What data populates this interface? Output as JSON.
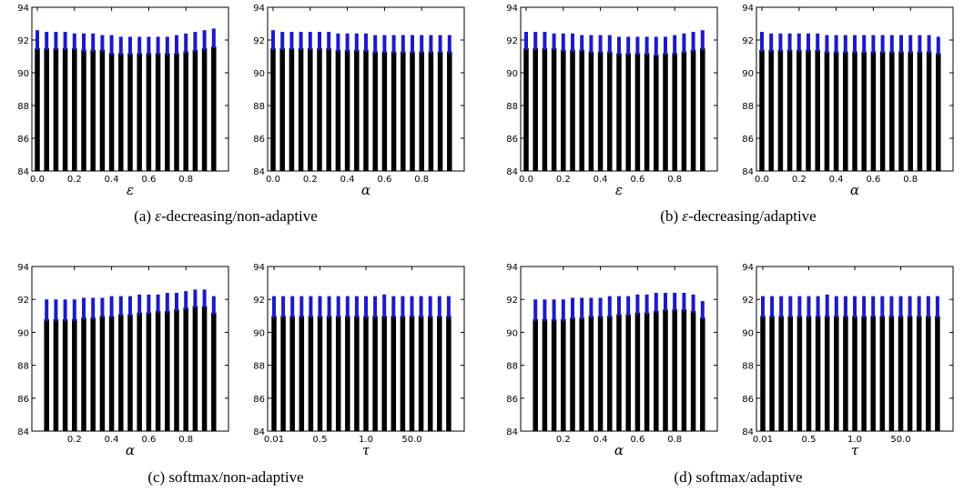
{
  "chart_data": [
    {
      "type": "bar",
      "subplot": "a-left",
      "xlabel": "ε",
      "xticks": [
        "0.0",
        "0.2",
        "0.4",
        "0.6",
        "0.8"
      ],
      "yticks": [
        "84",
        "86",
        "88",
        "90",
        "92",
        "94"
      ],
      "ylim": [
        84,
        94
      ],
      "x": [
        0.0,
        0.05,
        0.1,
        0.15,
        0.2,
        0.25,
        0.3,
        0.35,
        0.4,
        0.45,
        0.5,
        0.55,
        0.6,
        0.65,
        0.7,
        0.75,
        0.8,
        0.85,
        0.9,
        0.95
      ],
      "series": [
        {
          "values": [
            91.5,
            91.5,
            91.5,
            91.5,
            91.5,
            91.4,
            91.4,
            91.4,
            91.2,
            91.2,
            91.2,
            91.2,
            91.2,
            91.2,
            91.2,
            91.2,
            91.3,
            91.4,
            91.5,
            91.6
          ],
          "upper": [
            92.6,
            92.5,
            92.5,
            92.5,
            92.4,
            92.4,
            92.4,
            92.3,
            92.3,
            92.2,
            92.2,
            92.2,
            92.2,
            92.2,
            92.2,
            92.3,
            92.4,
            92.5,
            92.6,
            92.7
          ]
        }
      ]
    },
    {
      "type": "bar",
      "subplot": "a-right",
      "xlabel": "α",
      "xticks": [
        "0.0",
        "0.2",
        "0.4",
        "0.6",
        "0.8"
      ],
      "yticks": [
        "84",
        "86",
        "88",
        "90",
        "92",
        "94"
      ],
      "ylim": [
        84,
        94
      ],
      "x": [
        0.0,
        0.05,
        0.1,
        0.15,
        0.2,
        0.25,
        0.3,
        0.35,
        0.4,
        0.45,
        0.5,
        0.55,
        0.6,
        0.65,
        0.7,
        0.75,
        0.8,
        0.85,
        0.9,
        0.95
      ],
      "series": [
        {
          "values": [
            91.5,
            91.5,
            91.5,
            91.5,
            91.5,
            91.5,
            91.5,
            91.4,
            91.4,
            91.4,
            91.4,
            91.3,
            91.3,
            91.3,
            91.3,
            91.3,
            91.3,
            91.3,
            91.3,
            91.3
          ],
          "upper": [
            92.6,
            92.5,
            92.5,
            92.5,
            92.5,
            92.5,
            92.5,
            92.4,
            92.4,
            92.4,
            92.4,
            92.3,
            92.3,
            92.3,
            92.3,
            92.3,
            92.3,
            92.3,
            92.3,
            92.3
          ]
        }
      ]
    },
    {
      "type": "bar",
      "subplot": "b-left",
      "xlabel": "ε",
      "xticks": [
        "0.0",
        "0.2",
        "0.4",
        "0.6",
        "0.8"
      ],
      "yticks": [
        "84",
        "86",
        "88",
        "90",
        "92",
        "94"
      ],
      "ylim": [
        84,
        94
      ],
      "x": [
        0.0,
        0.05,
        0.1,
        0.15,
        0.2,
        0.25,
        0.3,
        0.35,
        0.4,
        0.45,
        0.5,
        0.55,
        0.6,
        0.65,
        0.7,
        0.75,
        0.8,
        0.85,
        0.9,
        0.95
      ],
      "series": [
        {
          "values": [
            91.5,
            91.5,
            91.5,
            91.5,
            91.4,
            91.4,
            91.4,
            91.3,
            91.3,
            91.3,
            91.2,
            91.2,
            91.2,
            91.2,
            91.1,
            91.2,
            91.2,
            91.3,
            91.4,
            91.5
          ],
          "upper": [
            92.5,
            92.5,
            92.5,
            92.4,
            92.4,
            92.4,
            92.3,
            92.3,
            92.3,
            92.3,
            92.2,
            92.2,
            92.2,
            92.2,
            92.2,
            92.2,
            92.3,
            92.4,
            92.5,
            92.6
          ]
        }
      ]
    },
    {
      "type": "bar",
      "subplot": "b-right",
      "xlabel": "α",
      "xticks": [
        "0.0",
        "0.2",
        "0.4",
        "0.6",
        "0.8"
      ],
      "yticks": [
        "84",
        "86",
        "88",
        "90",
        "92",
        "94"
      ],
      "ylim": [
        84,
        94
      ],
      "x": [
        0.0,
        0.05,
        0.1,
        0.15,
        0.2,
        0.25,
        0.3,
        0.35,
        0.4,
        0.45,
        0.5,
        0.55,
        0.6,
        0.65,
        0.7,
        0.75,
        0.8,
        0.85,
        0.9,
        0.95
      ],
      "series": [
        {
          "values": [
            91.4,
            91.4,
            91.4,
            91.4,
            91.4,
            91.4,
            91.4,
            91.3,
            91.3,
            91.3,
            91.3,
            91.3,
            91.3,
            91.3,
            91.3,
            91.3,
            91.3,
            91.3,
            91.3,
            91.2
          ],
          "upper": [
            92.5,
            92.4,
            92.4,
            92.4,
            92.4,
            92.4,
            92.4,
            92.3,
            92.3,
            92.3,
            92.3,
            92.3,
            92.3,
            92.3,
            92.3,
            92.3,
            92.3,
            92.3,
            92.3,
            92.2
          ]
        }
      ]
    },
    {
      "type": "bar",
      "subplot": "c-left",
      "xlabel": "α",
      "xticks": [
        "0.2",
        "0.4",
        "0.6",
        "0.8"
      ],
      "yticks": [
        "84",
        "86",
        "88",
        "90",
        "92",
        "94"
      ],
      "ylim": [
        84,
        94
      ],
      "x": [
        0.05,
        0.1,
        0.15,
        0.2,
        0.25,
        0.3,
        0.35,
        0.4,
        0.45,
        0.5,
        0.55,
        0.6,
        0.65,
        0.7,
        0.75,
        0.8,
        0.85,
        0.9,
        0.95
      ],
      "series": [
        {
          "values": [
            90.8,
            90.8,
            90.8,
            90.8,
            90.9,
            90.9,
            91.0,
            91.0,
            91.1,
            91.1,
            91.2,
            91.2,
            91.3,
            91.3,
            91.4,
            91.5,
            91.6,
            91.6,
            91.2
          ],
          "upper": [
            92.0,
            92.0,
            92.0,
            92.0,
            92.1,
            92.1,
            92.1,
            92.2,
            92.2,
            92.2,
            92.3,
            92.3,
            92.3,
            92.4,
            92.4,
            92.5,
            92.6,
            92.6,
            92.2
          ]
        }
      ]
    },
    {
      "type": "bar",
      "subplot": "c-right",
      "xlabel": "τ",
      "xticks": [
        "0.01",
        "0.5",
        "1.0",
        "50.0"
      ],
      "yticks": [
        "84",
        "86",
        "88",
        "90",
        "92",
        "94"
      ],
      "ylim": [
        84,
        94
      ],
      "x": [
        "0.01",
        "",
        "",
        "",
        "",
        "0.5",
        "",
        "",
        "",
        "",
        "1.0",
        "",
        "",
        "",
        "",
        "50.0",
        "",
        "",
        "",
        ""
      ],
      "series": [
        {
          "values": [
            91.0,
            91.0,
            91.0,
            91.0,
            91.0,
            91.0,
            91.0,
            91.0,
            91.0,
            91.0,
            91.0,
            91.0,
            91.0,
            91.0,
            91.0,
            91.0,
            91.0,
            91.0,
            91.0,
            91.0
          ],
          "upper": [
            92.2,
            92.2,
            92.2,
            92.2,
            92.2,
            92.2,
            92.2,
            92.2,
            92.2,
            92.2,
            92.2,
            92.2,
            92.3,
            92.2,
            92.2,
            92.2,
            92.2,
            92.2,
            92.2,
            92.2
          ]
        }
      ]
    },
    {
      "type": "bar",
      "subplot": "d-left",
      "xlabel": "α",
      "xticks": [
        "0.2",
        "0.4",
        "0.6",
        "0.8"
      ],
      "yticks": [
        "84",
        "86",
        "88",
        "90",
        "92",
        "94"
      ],
      "ylim": [
        84,
        94
      ],
      "x": [
        0.05,
        0.1,
        0.15,
        0.2,
        0.25,
        0.3,
        0.35,
        0.4,
        0.45,
        0.5,
        0.55,
        0.6,
        0.65,
        0.7,
        0.75,
        0.8,
        0.85,
        0.9,
        0.95
      ],
      "series": [
        {
          "values": [
            90.8,
            90.8,
            90.8,
            90.8,
            90.9,
            90.9,
            91.0,
            91.0,
            91.0,
            91.1,
            91.1,
            91.2,
            91.2,
            91.3,
            91.4,
            91.4,
            91.4,
            91.3,
            90.9
          ],
          "upper": [
            92.0,
            92.0,
            92.0,
            92.0,
            92.1,
            92.1,
            92.1,
            92.1,
            92.2,
            92.2,
            92.2,
            92.3,
            92.3,
            92.4,
            92.4,
            92.4,
            92.4,
            92.3,
            91.9
          ]
        }
      ]
    },
    {
      "type": "bar",
      "subplot": "d-right",
      "xlabel": "τ",
      "xticks": [
        "0.01",
        "0.5",
        "1.0",
        "50.0"
      ],
      "yticks": [
        "84",
        "86",
        "88",
        "90",
        "92",
        "94"
      ],
      "ylim": [
        84,
        94
      ],
      "x": [
        "0.01",
        "",
        "",
        "",
        "",
        "0.5",
        "",
        "",
        "",
        "",
        "1.0",
        "",
        "",
        "",
        "",
        "50.0",
        "",
        "",
        "",
        ""
      ],
      "series": [
        {
          "values": [
            91.0,
            91.0,
            91.0,
            91.0,
            91.0,
            91.0,
            91.0,
            91.0,
            91.0,
            91.0,
            91.0,
            91.0,
            91.0,
            91.0,
            91.0,
            91.0,
            91.0,
            91.0,
            91.0,
            91.0
          ],
          "upper": [
            92.2,
            92.2,
            92.2,
            92.2,
            92.2,
            92.2,
            92.2,
            92.3,
            92.2,
            92.2,
            92.2,
            92.2,
            92.2,
            92.2,
            92.2,
            92.2,
            92.2,
            92.2,
            92.2,
            92.2
          ]
        }
      ]
    }
  ],
  "captions": {
    "a_prefix": "(a) ",
    "a_symbol": "ε",
    "a_suffix": "-decreasing/non-adaptive",
    "b_prefix": "(b) ",
    "b_symbol": "ε",
    "b_suffix": "-decreasing/adaptive",
    "c": "(c) softmax/non-adaptive",
    "d": "(d) softmax/adaptive"
  },
  "colors": {
    "bar": "#000000",
    "error": "#1a1acc",
    "axes": "#000000"
  }
}
